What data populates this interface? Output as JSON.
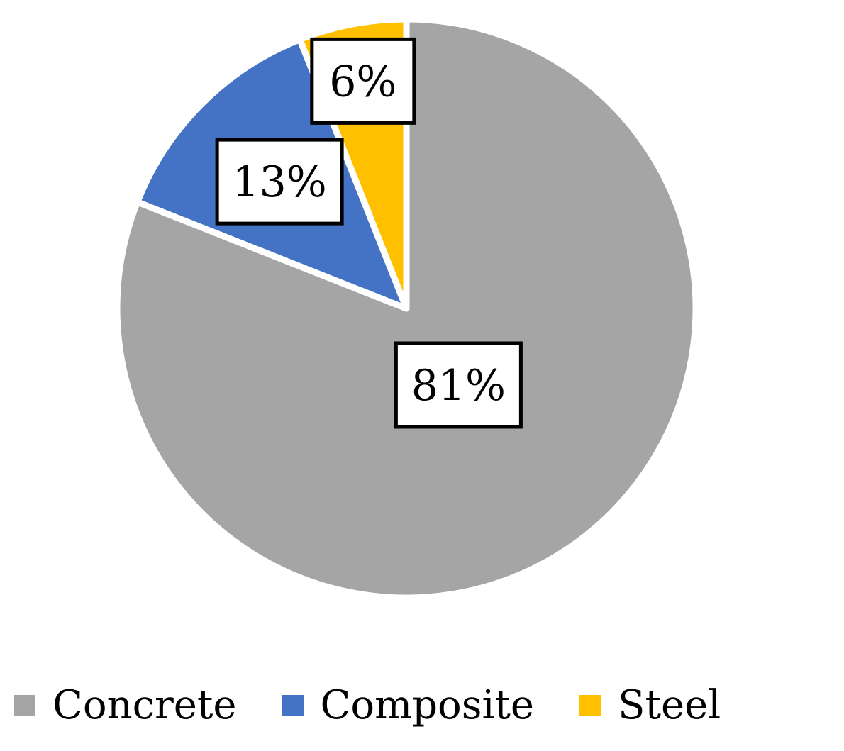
{
  "chart_data": {
    "type": "pie",
    "title": "",
    "categories": [
      "Concrete",
      "Composite",
      "Steel"
    ],
    "values": [
      81,
      13,
      6
    ],
    "data_labels": [
      "81%",
      "13%",
      "6%"
    ],
    "colors": [
      "#a5a5a5",
      "#4472c4",
      "#ffc000"
    ],
    "start_angle_deg": 0,
    "direction": "clockwise",
    "legend_position": "bottom"
  },
  "legend": {
    "items": [
      {
        "label": "Concrete",
        "color": "#a5a5a5"
      },
      {
        "label": "Composite",
        "color": "#4472c4"
      },
      {
        "label": "Steel",
        "color": "#ffc000"
      }
    ]
  }
}
